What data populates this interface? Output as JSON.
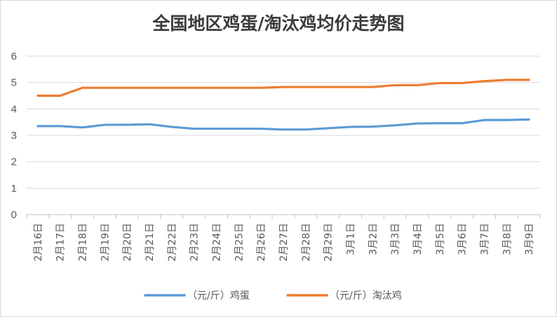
{
  "chart_data": {
    "type": "line",
    "title": "全国地区鸡蛋/淘汰鸡均价走势图",
    "xlabel": "",
    "ylabel": "",
    "ylim": [
      0,
      6
    ],
    "yticks": [
      "0",
      "1",
      "2",
      "3",
      "4",
      "5",
      "6"
    ],
    "grid": true,
    "legend": "bottom",
    "categories": [
      "2月16日",
      "2月17日",
      "2月18日",
      "2月19日",
      "2月20日",
      "2月21日",
      "2月22日",
      "2月23日",
      "2月24日",
      "2月25日",
      "2月26日",
      "2月27日",
      "2月28日",
      "2月29日",
      "3月1日",
      "3月2日",
      "3月3日",
      "3月4日",
      "3月5日",
      "3月6日",
      "3月7日",
      "3月8日",
      "3月9日"
    ],
    "series": [
      {
        "name": "（元/斤）鸡蛋",
        "color": "#5b9bd5",
        "values": [
          3.35,
          3.35,
          3.3,
          3.4,
          3.4,
          3.42,
          3.32,
          3.25,
          3.25,
          3.25,
          3.25,
          3.22,
          3.22,
          3.27,
          3.32,
          3.33,
          3.38,
          3.45,
          3.46,
          3.46,
          3.58,
          3.58,
          3.6
        ]
      },
      {
        "name": "（元/斤）淘汰鸡",
        "color": "#ed7d31",
        "values": [
          4.5,
          4.5,
          4.8,
          4.8,
          4.8,
          4.8,
          4.8,
          4.8,
          4.8,
          4.8,
          4.8,
          4.83,
          4.83,
          4.83,
          4.83,
          4.83,
          4.9,
          4.9,
          4.98,
          4.98,
          5.05,
          5.1,
          5.1
        ]
      }
    ]
  }
}
